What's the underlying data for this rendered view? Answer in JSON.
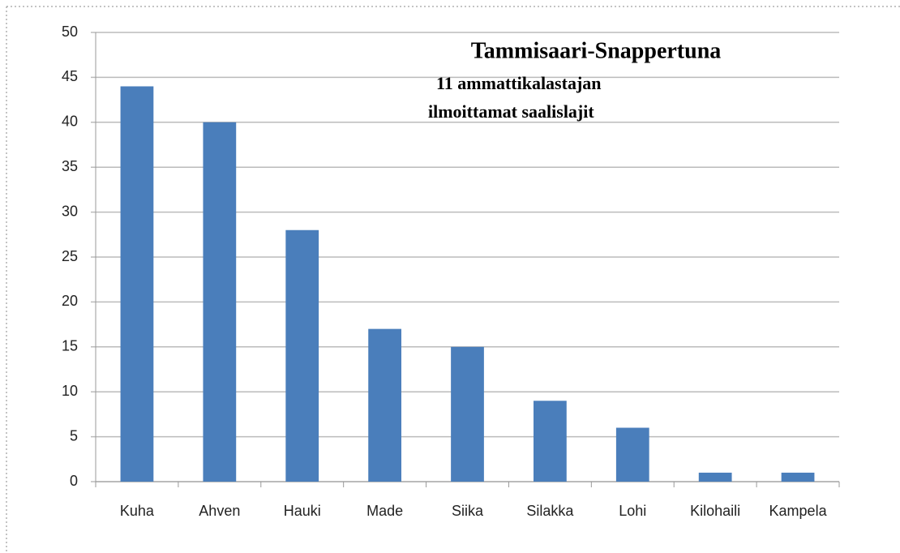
{
  "chart_data": {
    "type": "bar",
    "title": "Tammisaari-Snappertuna",
    "subtitle": [
      "11 ammattikalastajan",
      "ilmoittamat saalislajit"
    ],
    "categories": [
      "Kuha",
      "Ahven",
      "Hauki",
      "Made",
      "Siika",
      "Silakka",
      "Lohi",
      "Kilohaili",
      "Kampela"
    ],
    "values": [
      44,
      40,
      28,
      17,
      15,
      9,
      6,
      1,
      1
    ],
    "color": "#4a7ebb",
    "ylim": [
      0,
      50
    ],
    "yticks": [
      0,
      5,
      10,
      15,
      20,
      25,
      30,
      35,
      40,
      45,
      50
    ],
    "grid": true
  }
}
